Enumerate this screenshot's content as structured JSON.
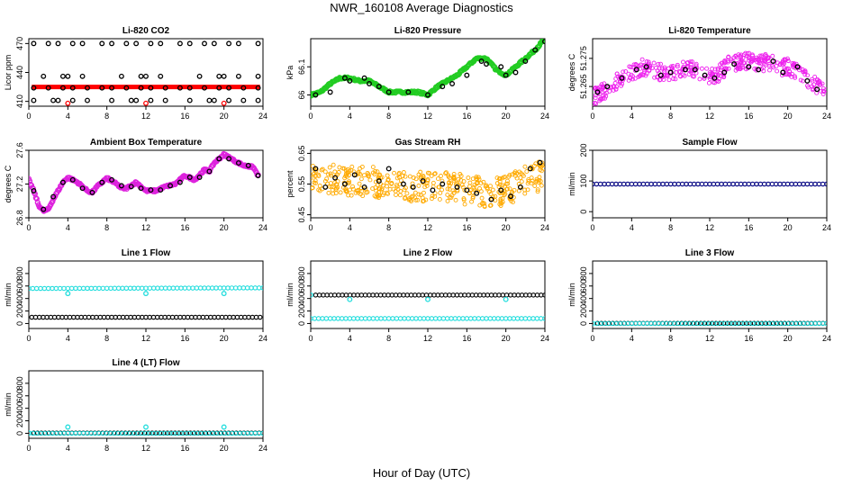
{
  "title": "NWR_160108  Average Diagnostics",
  "xlabel": "Hour of Day (UTC)",
  "chart_data": [
    {
      "type": "scatter",
      "title": "Li-820 CO2",
      "ylabel": "Licor ppm",
      "xlim": [
        0,
        24
      ],
      "xticks": [
        0,
        4,
        8,
        12,
        16,
        20,
        24
      ],
      "ylim": [
        405,
        475
      ],
      "yticks": [
        410,
        440,
        470
      ],
      "series": [
        {
          "color": "#ff0000",
          "style": "band",
          "x": [
            0.3,
            23.7
          ],
          "y": [
            425,
            425
          ]
        },
        {
          "color": "#000000",
          "style": "points",
          "x": [
            0.5,
            2,
            3,
            4.5,
            5.5,
            7.5,
            8.5,
            10,
            11,
            12.5,
            13.5,
            15.5,
            16.5,
            18,
            19,
            20.5,
            21.5,
            23.5
          ],
          "y": [
            470,
            470,
            470,
            470,
            470,
            470,
            470,
            470,
            470,
            470,
            470,
            470,
            470,
            470,
            470,
            470,
            470,
            470
          ]
        },
        {
          "color": "#000000",
          "style": "points",
          "x": [
            1.5,
            3.5,
            4,
            5.5,
            9.5,
            11.5,
            12,
            13.5,
            17.5,
            19.5,
            20,
            21.5,
            23.5
          ],
          "y": [
            436,
            436,
            436,
            436,
            436,
            436,
            436,
            436,
            436,
            436,
            436,
            436,
            436
          ]
        },
        {
          "color": "#000000",
          "style": "points",
          "x": [
            0.5,
            2,
            3.5,
            4.5,
            6,
            7.5,
            8.5,
            10,
            11.5,
            12.5,
            14,
            15.5,
            16.5,
            18,
            19.5,
            20.5,
            22,
            23.5
          ],
          "y": [
            424,
            424,
            424,
            424,
            424,
            424,
            424,
            424,
            424,
            424,
            424,
            424,
            424,
            424,
            424,
            424,
            424,
            424
          ]
        },
        {
          "color": "#000000",
          "style": "points",
          "x": [
            0.5,
            2.5,
            3,
            4.5,
            6,
            8.5,
            10.5,
            11,
            12.5,
            14,
            16.5,
            18.5,
            19,
            20.5,
            22,
            23.5
          ],
          "y": [
            411,
            411,
            411,
            411,
            411,
            411,
            411,
            411,
            411,
            411,
            411,
            411,
            411,
            411,
            411,
            411
          ]
        },
        {
          "color": "#ff0000",
          "style": "points",
          "x": [
            4,
            12,
            20
          ],
          "y": [
            408,
            408,
            408
          ]
        }
      ]
    },
    {
      "type": "scatter",
      "title": "Li-820 Pressure",
      "ylabel": "kPa",
      "xlim": [
        0,
        24
      ],
      "xticks": [
        0,
        4,
        8,
        12,
        16,
        20,
        24
      ],
      "ylim": [
        65.96,
        66.2
      ],
      "yticks": [
        66.0,
        66.1
      ],
      "series": [
        {
          "color": "#22cc22",
          "style": "dense",
          "x": [
            0,
            1,
            2,
            3,
            4,
            5,
            6,
            7,
            8,
            9,
            10,
            11,
            12,
            13,
            14,
            15,
            16,
            17,
            18,
            19,
            20,
            21,
            22,
            23,
            24
          ],
          "y": [
            66.0,
            66.01,
            66.04,
            66.06,
            66.06,
            66.05,
            66.05,
            66.03,
            66.01,
            66.01,
            66.01,
            66.01,
            66.0,
            66.03,
            66.05,
            66.07,
            66.1,
            66.13,
            66.13,
            66.09,
            66.07,
            66.1,
            66.13,
            66.16,
            66.2
          ]
        },
        {
          "color": "#000000",
          "style": "points",
          "x": [
            0.5,
            2,
            3.5,
            4,
            5.5,
            6,
            7,
            8,
            10,
            12,
            13.5,
            14.5,
            16,
            17.5,
            18,
            19.5,
            20,
            21,
            22,
            23,
            24
          ],
          "y": [
            66.0,
            66.01,
            66.06,
            66.05,
            66.06,
            66.04,
            66.03,
            66.01,
            66.01,
            66.0,
            66.03,
            66.04,
            66.07,
            66.12,
            66.11,
            66.1,
            66.07,
            66.08,
            66.12,
            66.16,
            66.19
          ]
        }
      ]
    },
    {
      "type": "scatter",
      "title": "Li-820 Temperature",
      "ylabel": "degrees C",
      "xlim": [
        0,
        24
      ],
      "xticks": [
        0,
        4,
        8,
        12,
        16,
        20,
        24
      ],
      "ylim": [
        51.258,
        51.282
      ],
      "yticks": [
        51.265,
        51.275
      ],
      "series": [
        {
          "color": "#ee22ee",
          "style": "noisy",
          "x": [
            0,
            1,
            2,
            3,
            4,
            5,
            6,
            7,
            8,
            9,
            10,
            11,
            12,
            13,
            14,
            15,
            16,
            17,
            18,
            19,
            20,
            21,
            22,
            23,
            24
          ],
          "y": [
            51.261,
            51.263,
            51.266,
            51.268,
            51.27,
            51.272,
            51.271,
            51.27,
            51.269,
            51.271,
            51.272,
            51.27,
            51.268,
            51.27,
            51.273,
            51.274,
            51.274,
            51.273,
            51.274,
            51.272,
            51.272,
            51.27,
            51.268,
            51.265,
            51.263
          ],
          "spread": 0.003
        },
        {
          "color": "#000000",
          "style": "points",
          "x": [
            0.5,
            1.5,
            3,
            4.5,
            5.5,
            7,
            8,
            9.5,
            10.5,
            11.5,
            12.5,
            13.5,
            14.5,
            16,
            17,
            18.5,
            19.5,
            21,
            22,
            23
          ],
          "y": [
            51.263,
            51.265,
            51.268,
            51.271,
            51.272,
            51.269,
            51.27,
            51.271,
            51.271,
            51.269,
            51.268,
            51.27,
            51.273,
            51.272,
            51.271,
            51.274,
            51.27,
            51.272,
            51.267,
            51.264
          ]
        }
      ]
    },
    {
      "type": "scatter",
      "title": "Ambient Box Temperature",
      "ylabel": "degrees C",
      "xlim": [
        0,
        24
      ],
      "xticks": [
        0,
        4,
        8,
        12,
        16,
        20,
        24
      ],
      "ylim": [
        26.8,
        27.6
      ],
      "yticks": [
        26.8,
        27.2,
        27.6
      ],
      "series": [
        {
          "color": "#dd22dd",
          "style": "dense",
          "x": [
            0,
            0.5,
            1,
            1.5,
            2,
            2.5,
            3,
            3.5,
            4,
            5,
            6,
            6.5,
            7,
            8,
            9,
            9.5,
            10,
            11,
            12,
            13,
            14,
            15,
            16,
            17,
            18,
            18.5,
            19,
            19.5,
            20,
            20.5,
            21,
            22,
            23,
            23.5
          ],
          "y": [
            27.25,
            27.12,
            26.95,
            26.88,
            26.9,
            27.02,
            27.12,
            27.22,
            27.28,
            27.22,
            27.12,
            27.1,
            27.17,
            27.27,
            27.2,
            27.15,
            27.15,
            27.22,
            27.12,
            27.12,
            27.17,
            27.2,
            27.3,
            27.25,
            27.37,
            27.35,
            27.45,
            27.5,
            27.55,
            27.52,
            27.48,
            27.42,
            27.4,
            27.3
          ]
        },
        {
          "color": "#000000",
          "style": "points",
          "x": [
            0.5,
            1.5,
            2.5,
            3.5,
            4.5,
            5.5,
            6.5,
            7.5,
            8.5,
            9.5,
            10.5,
            11.5,
            12.5,
            13.5,
            14.5,
            15.5,
            16.5,
            17.5,
            18.5,
            19.5,
            20.5,
            21.5,
            22.5,
            23.5
          ],
          "y": [
            27.12,
            26.9,
            27.05,
            27.22,
            27.25,
            27.15,
            27.1,
            27.22,
            27.25,
            27.18,
            27.17,
            27.15,
            27.13,
            27.13,
            27.18,
            27.22,
            27.28,
            27.28,
            27.35,
            27.5,
            27.5,
            27.45,
            27.42,
            27.3
          ]
        }
      ]
    },
    {
      "type": "scatter",
      "title": "Gas Stream RH",
      "ylabel": "percent",
      "xlim": [
        0,
        24
      ],
      "xticks": [
        0,
        4,
        8,
        12,
        16,
        20,
        24
      ],
      "ylim": [
        0.44,
        0.66
      ],
      "yticks": [
        0.45,
        0.55,
        0.65
      ],
      "series": [
        {
          "color": "#ffaa00",
          "style": "noisy",
          "x": [
            0,
            2,
            4,
            6,
            8,
            10,
            12,
            14,
            16,
            18,
            20,
            22,
            24
          ],
          "y": [
            0.57,
            0.57,
            0.56,
            0.56,
            0.55,
            0.54,
            0.54,
            0.54,
            0.53,
            0.52,
            0.53,
            0.56,
            0.58
          ],
          "spread": 0.05
        },
        {
          "color": "#000000",
          "style": "points",
          "x": [
            0.5,
            1.5,
            2.5,
            3.5,
            4.5,
            5.5,
            7,
            8,
            9.5,
            10.5,
            11.5,
            12.5,
            13.5,
            15,
            16,
            17,
            18.5,
            19.5,
            20.5,
            21.5,
            22.5,
            23.5
          ],
          "y": [
            0.6,
            0.54,
            0.57,
            0.55,
            0.58,
            0.54,
            0.56,
            0.6,
            0.55,
            0.54,
            0.56,
            0.53,
            0.55,
            0.54,
            0.53,
            0.52,
            0.5,
            0.53,
            0.51,
            0.54,
            0.6,
            0.62
          ]
        }
      ]
    },
    {
      "type": "scatter",
      "title": "Sample Flow",
      "ylabel": "ml/min",
      "xlim": [
        0,
        24
      ],
      "xticks": [
        0,
        4,
        8,
        12,
        16,
        20,
        24
      ],
      "ylim": [
        -20,
        200
      ],
      "yticks": [
        0,
        100,
        200
      ],
      "series": [
        {
          "color": "#000080",
          "style": "row",
          "x": [
            0,
            24
          ],
          "y": [
            90,
            90
          ]
        }
      ]
    },
    {
      "type": "scatter",
      "title": "Line 1 Flow",
      "ylabel": "ml/min",
      "xlim": [
        0,
        24
      ],
      "xticks": [
        0,
        4,
        8,
        12,
        16,
        20,
        24
      ],
      "ylim": [
        -80,
        1000
      ],
      "yticks": [
        0,
        200,
        400,
        600,
        800
      ],
      "series": [
        {
          "color": "#22dddd",
          "style": "row",
          "x": [
            0,
            24
          ],
          "y": [
            560,
            570
          ]
        },
        {
          "color": "#22dddd",
          "style": "points",
          "x": [
            4,
            12,
            20
          ],
          "y": [
            480,
            480,
            480
          ]
        },
        {
          "color": "#000000",
          "style": "row",
          "x": [
            0.3,
            23.7
          ],
          "y": [
            100,
            100
          ]
        }
      ]
    },
    {
      "type": "scatter",
      "title": "Line 2 Flow",
      "ylabel": "ml/min",
      "xlim": [
        0,
        24
      ],
      "xticks": [
        0,
        4,
        8,
        12,
        16,
        20,
        24
      ],
      "ylim": [
        -80,
        1000
      ],
      "yticks": [
        0,
        200,
        400,
        600,
        800
      ],
      "series": [
        {
          "color": "#000000",
          "style": "row",
          "x": [
            0.5,
            24
          ],
          "y": [
            455,
            455
          ]
        },
        {
          "color": "#22dddd",
          "style": "points",
          "x": [
            0,
            4,
            12,
            20
          ],
          "y": [
            455,
            385,
            385,
            385
          ]
        },
        {
          "color": "#22dddd",
          "style": "row",
          "x": [
            0,
            24
          ],
          "y": [
            80,
            80
          ]
        }
      ]
    },
    {
      "type": "scatter",
      "title": "Line 3 Flow",
      "ylabel": "ml/min",
      "xlim": [
        0,
        24
      ],
      "xticks": [
        0,
        4,
        8,
        12,
        16,
        20,
        24
      ],
      "ylim": [
        -80,
        1000
      ],
      "yticks": [
        0,
        200,
        400,
        600,
        800
      ],
      "series": [
        {
          "color": "#000000",
          "style": "row",
          "x": [
            0.5,
            24
          ],
          "y": [
            2,
            2
          ]
        },
        {
          "color": "#22dddd",
          "style": "row",
          "x": [
            0,
            24
          ],
          "y": [
            0,
            0
          ]
        }
      ]
    },
    {
      "type": "scatter",
      "title": "Line 4 (LT) Flow",
      "ylabel": "ml/min",
      "xlim": [
        0,
        24
      ],
      "xticks": [
        0,
        4,
        8,
        12,
        16,
        20,
        24
      ],
      "ylim": [
        -80,
        1000
      ],
      "yticks": [
        0,
        200,
        400,
        600,
        800
      ],
      "series": [
        {
          "color": "#000000",
          "style": "row",
          "x": [
            0.5,
            24
          ],
          "y": [
            5,
            5
          ]
        },
        {
          "color": "#22dddd",
          "style": "points",
          "x": [
            0,
            4,
            12,
            20
          ],
          "y": [
            5,
            100,
            100,
            100
          ]
        },
        {
          "color": "#22dddd",
          "style": "row",
          "x": [
            0,
            24
          ],
          "y": [
            0,
            0
          ]
        }
      ]
    }
  ]
}
